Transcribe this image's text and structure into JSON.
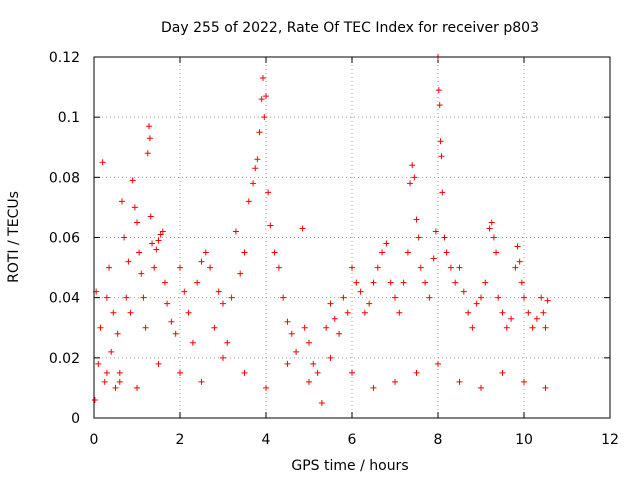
{
  "chart_data": {
    "type": "scatter",
    "title": "Day 255 of 2022, Rate Of TEC Index for receiver p803",
    "xlabel": "GPS time / hours",
    "ylabel": "ROTI / TECUs",
    "xlim": [
      0,
      12
    ],
    "ylim": [
      0,
      0.12
    ],
    "xticks": [
      0,
      2,
      4,
      6,
      8,
      10,
      12
    ],
    "xtick_labels": [
      "0",
      "2",
      "4",
      "6",
      "8",
      "10",
      "12"
    ],
    "yticks": [
      0,
      0.02,
      0.04,
      0.06,
      0.08,
      0.1,
      0.12
    ],
    "ytick_labels": [
      "0",
      "0.02",
      "0.04",
      "0.06",
      "0.08",
      "0.1",
      "0.12"
    ],
    "grid": true,
    "marker": "+",
    "color": "#ff0000",
    "series": [
      {
        "name": "ROTI",
        "points": [
          [
            0.02,
            0.006
          ],
          [
            0.05,
            0.042
          ],
          [
            0.1,
            0.018
          ],
          [
            0.15,
            0.03
          ],
          [
            0.2,
            0.085
          ],
          [
            0.25,
            0.012
          ],
          [
            0.3,
            0.04
          ],
          [
            0.35,
            0.05
          ],
          [
            0.4,
            0.022
          ],
          [
            0.45,
            0.035
          ],
          [
            0.5,
            0.01
          ],
          [
            0.55,
            0.028
          ],
          [
            0.6,
            0.015
          ],
          [
            0.65,
            0.072
          ],
          [
            0.7,
            0.06
          ],
          [
            0.75,
            0.04
          ],
          [
            0.8,
            0.052
          ],
          [
            0.85,
            0.035
          ],
          [
            0.9,
            0.079
          ],
          [
            0.95,
            0.07
          ],
          [
            1.0,
            0.065
          ],
          [
            1.05,
            0.055
          ],
          [
            1.1,
            0.048
          ],
          [
            1.15,
            0.04
          ],
          [
            1.2,
            0.03
          ],
          [
            1.25,
            0.088
          ],
          [
            1.28,
            0.097
          ],
          [
            1.3,
            0.093
          ],
          [
            1.32,
            0.067
          ],
          [
            1.35,
            0.058
          ],
          [
            1.4,
            0.05
          ],
          [
            1.45,
            0.056
          ],
          [
            1.5,
            0.059
          ],
          [
            1.55,
            0.061
          ],
          [
            1.6,
            0.062
          ],
          [
            1.65,
            0.045
          ],
          [
            1.7,
            0.038
          ],
          [
            1.8,
            0.032
          ],
          [
            1.9,
            0.028
          ],
          [
            2.0,
            0.05
          ],
          [
            2.1,
            0.042
          ],
          [
            2.2,
            0.035
          ],
          [
            2.3,
            0.025
          ],
          [
            2.4,
            0.045
          ],
          [
            2.5,
            0.052
          ],
          [
            2.6,
            0.055
          ],
          [
            2.7,
            0.05
          ],
          [
            2.8,
            0.03
          ],
          [
            2.9,
            0.042
          ],
          [
            3.0,
            0.038
          ],
          [
            3.1,
            0.025
          ],
          [
            3.2,
            0.04
          ],
          [
            3.3,
            0.062
          ],
          [
            3.4,
            0.048
          ],
          [
            3.5,
            0.055
          ],
          [
            3.6,
            0.072
          ],
          [
            3.7,
            0.078
          ],
          [
            3.75,
            0.083
          ],
          [
            3.8,
            0.086
          ],
          [
            3.85,
            0.095
          ],
          [
            3.9,
            0.106
          ],
          [
            3.93,
            0.113
          ],
          [
            3.96,
            0.1
          ],
          [
            4.0,
            0.107
          ],
          [
            4.05,
            0.075
          ],
          [
            4.1,
            0.064
          ],
          [
            4.2,
            0.055
          ],
          [
            4.3,
            0.05
          ],
          [
            4.4,
            0.04
          ],
          [
            4.5,
            0.032
          ],
          [
            4.6,
            0.028
          ],
          [
            4.7,
            0.022
          ],
          [
            4.85,
            0.063
          ],
          [
            4.9,
            0.03
          ],
          [
            5.0,
            0.025
          ],
          [
            5.1,
            0.018
          ],
          [
            5.2,
            0.015
          ],
          [
            5.3,
            0.005
          ],
          [
            5.4,
            0.03
          ],
          [
            5.5,
            0.038
          ],
          [
            5.6,
            0.033
          ],
          [
            5.7,
            0.028
          ],
          [
            5.8,
            0.04
          ],
          [
            5.9,
            0.035
          ],
          [
            6.0,
            0.05
          ],
          [
            6.1,
            0.045
          ],
          [
            6.2,
            0.042
          ],
          [
            6.3,
            0.035
          ],
          [
            6.4,
            0.038
          ],
          [
            6.5,
            0.045
          ],
          [
            6.6,
            0.05
          ],
          [
            6.7,
            0.055
          ],
          [
            6.8,
            0.058
          ],
          [
            6.9,
            0.045
          ],
          [
            7.0,
            0.04
          ],
          [
            7.1,
            0.035
          ],
          [
            7.2,
            0.045
          ],
          [
            7.3,
            0.055
          ],
          [
            7.35,
            0.078
          ],
          [
            7.4,
            0.084
          ],
          [
            7.45,
            0.08
          ],
          [
            7.5,
            0.066
          ],
          [
            7.55,
            0.06
          ],
          [
            7.6,
            0.05
          ],
          [
            7.7,
            0.045
          ],
          [
            7.8,
            0.04
          ],
          [
            7.9,
            0.053
          ],
          [
            7.95,
            0.062
          ],
          [
            8.0,
            0.12
          ],
          [
            8.02,
            0.109
          ],
          [
            8.04,
            0.104
          ],
          [
            8.06,
            0.092
          ],
          [
            8.08,
            0.087
          ],
          [
            8.1,
            0.075
          ],
          [
            8.15,
            0.06
          ],
          [
            8.2,
            0.055
          ],
          [
            8.3,
            0.05
          ],
          [
            8.4,
            0.045
          ],
          [
            8.5,
            0.05
          ],
          [
            8.6,
            0.042
          ],
          [
            8.7,
            0.035
          ],
          [
            8.8,
            0.03
          ],
          [
            8.9,
            0.038
          ],
          [
            9.0,
            0.04
          ],
          [
            9.1,
            0.045
          ],
          [
            9.2,
            0.063
          ],
          [
            9.25,
            0.065
          ],
          [
            9.3,
            0.06
          ],
          [
            9.35,
            0.055
          ],
          [
            9.4,
            0.04
          ],
          [
            9.5,
            0.035
          ],
          [
            9.6,
            0.03
          ],
          [
            9.7,
            0.033
          ],
          [
            9.8,
            0.05
          ],
          [
            9.85,
            0.057
          ],
          [
            9.9,
            0.052
          ],
          [
            9.95,
            0.045
          ],
          [
            10.0,
            0.04
          ],
          [
            10.1,
            0.035
          ],
          [
            10.2,
            0.03
          ],
          [
            10.3,
            0.033
          ],
          [
            10.4,
            0.04
          ],
          [
            10.45,
            0.035
          ],
          [
            10.5,
            0.03
          ],
          [
            10.55,
            0.039
          ],
          [
            0.3,
            0.015
          ],
          [
            0.6,
            0.012
          ],
          [
            1.0,
            0.01
          ],
          [
            1.5,
            0.018
          ],
          [
            2.0,
            0.015
          ],
          [
            2.5,
            0.012
          ],
          [
            3.0,
            0.02
          ],
          [
            3.5,
            0.015
          ],
          [
            4.0,
            0.01
          ],
          [
            4.5,
            0.018
          ],
          [
            5.0,
            0.012
          ],
          [
            5.5,
            0.02
          ],
          [
            6.0,
            0.015
          ],
          [
            6.5,
            0.01
          ],
          [
            7.0,
            0.012
          ],
          [
            7.5,
            0.015
          ],
          [
            8.0,
            0.018
          ],
          [
            8.5,
            0.012
          ],
          [
            9.0,
            0.01
          ],
          [
            9.5,
            0.015
          ],
          [
            10.0,
            0.012
          ],
          [
            10.5,
            0.01
          ]
        ]
      }
    ]
  }
}
